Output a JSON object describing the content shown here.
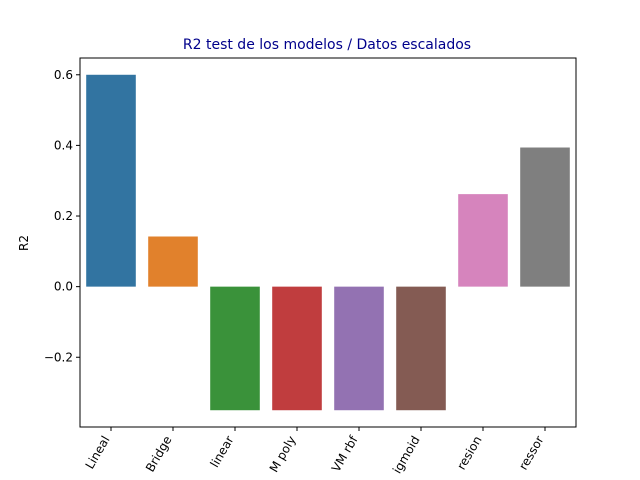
{
  "chart_data": {
    "type": "bar",
    "title": "R2 test de los modelos / Datos escalados",
    "title_color": "#00008b",
    "xlabel": "",
    "ylabel": "R2",
    "ylim": [
      -0.3975,
      0.6475
    ],
    "yticks": [
      -0.2,
      0.0,
      0.2,
      0.4,
      0.6
    ],
    "ytick_labels": [
      "−0.2",
      "0.0",
      "0.2",
      "0.4",
      "0.6"
    ],
    "grid": false,
    "categories": [
      "Lineal",
      "Bridge",
      "SVM linear",
      "SVM poly",
      "SVM rbf",
      "SVM sigmoid",
      "Regresion",
      "Regressor"
    ],
    "category_labels_visible": [
      "Lineal",
      "Bridge",
      "linear",
      "M poly",
      "VM rbf",
      "igmoid",
      "resion",
      "ressor"
    ],
    "values": [
      0.6,
      0.142,
      -0.35,
      -0.35,
      -0.35,
      -0.35,
      0.262,
      0.394
    ],
    "colors": [
      "#3274a1",
      "#e1812c",
      "#3a923a",
      "#c03d3e",
      "#9372b2",
      "#845b53",
      "#d684bd",
      "#7f7f7f"
    ]
  }
}
